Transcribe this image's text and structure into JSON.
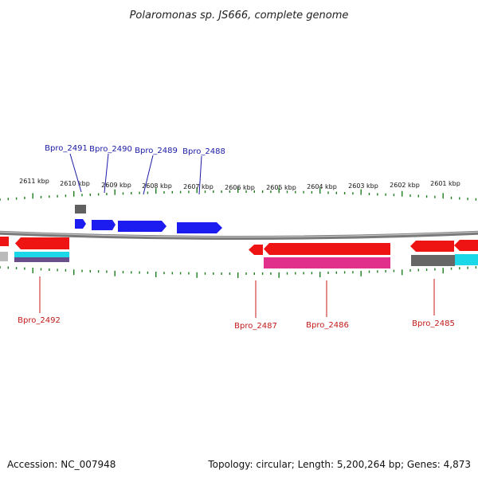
{
  "title": "Polaromonas sp. JS666, complete genome",
  "accession": "Accession: NC_007948",
  "summary": "Topology: circular; Length: 5,200,264 bp; Genes: 4,873",
  "colors": {
    "backbone": "#8c8c8c",
    "tick": "#1e7d1e",
    "top_label": "#1a1aa6",
    "bottom_label": "#c41818",
    "forward_gene": "#1c1cf0",
    "reverse_gene": "#ee1414",
    "magenta": "#e0308c",
    "cyan": "#1ad8e8",
    "gray": "#666666"
  },
  "scale_labels": [
    "2611 kbp",
    "2610 kbp",
    "2609 kbp",
    "2608 kbp",
    "2607 kbp",
    "2606 kbp",
    "2605 kbp",
    "2604 kbp",
    "2603 kbp",
    "2602 kbp",
    "2601 kbp"
  ],
  "top_genes": [
    "Bpro_2491",
    "Bpro_2490",
    "Bpro_2489",
    "Bpro_2488"
  ],
  "bottom_genes": [
    "Bpro_2492",
    "Bpro_2487",
    "Bpro_2486",
    "Bpro_2485"
  ]
}
